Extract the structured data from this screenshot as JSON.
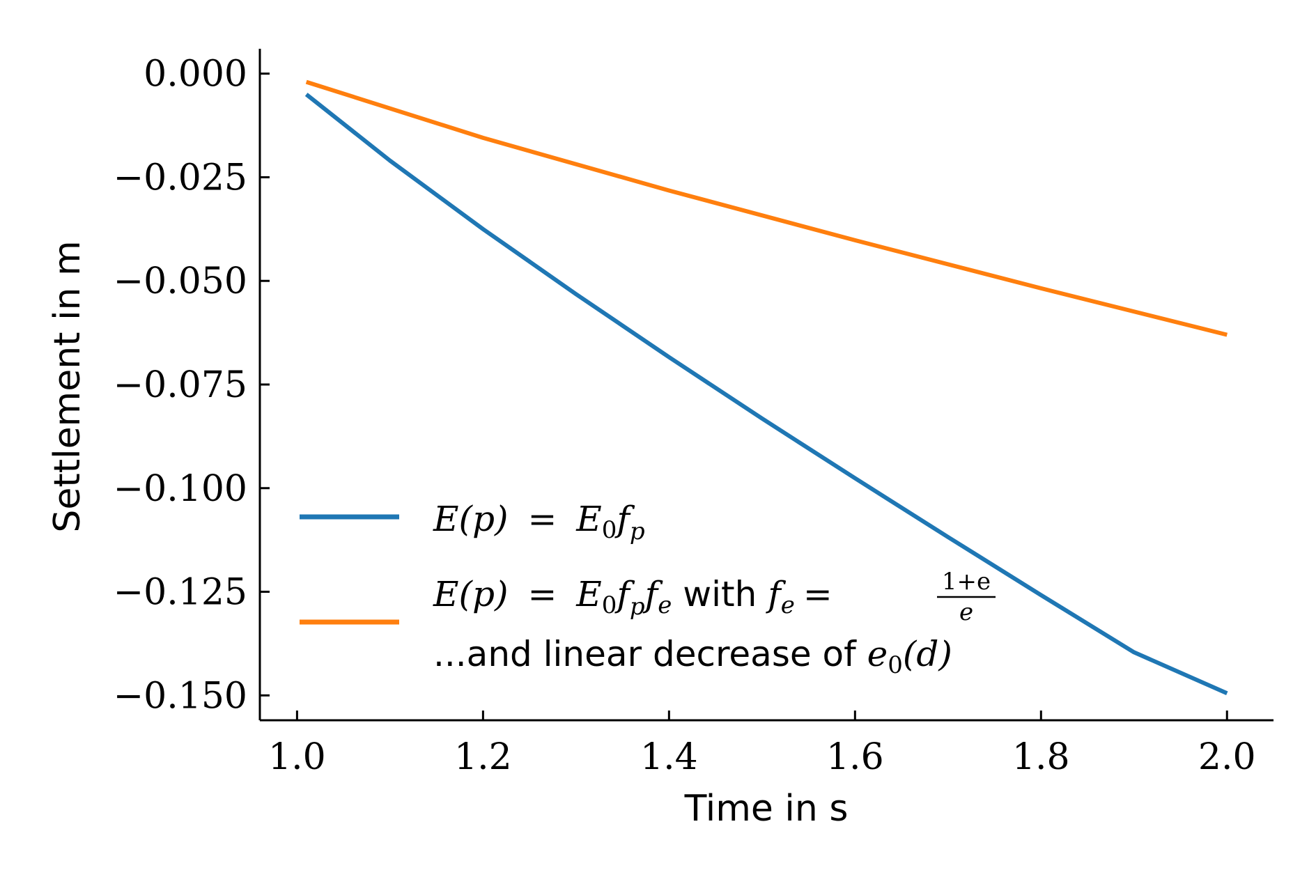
{
  "chart_data": {
    "type": "line",
    "xlabel": "Time in s",
    "ylabel": "Settlement in m",
    "xlim": [
      0.96,
      2.05
    ],
    "ylim": [
      -0.156,
      0.006
    ],
    "xticks": [
      1.0,
      1.2,
      1.4,
      1.6,
      1.8,
      2.0
    ],
    "xtick_labels": [
      "1.0",
      "1.2",
      "1.4",
      "1.6",
      "1.8",
      "2.0"
    ],
    "yticks": [
      0.0,
      -0.025,
      -0.05,
      -0.075,
      -0.1,
      -0.125,
      -0.15
    ],
    "ytick_labels": [
      "0.000",
      "−0.025",
      "−0.050",
      "−0.075",
      "−0.100",
      "−0.125",
      "−0.150"
    ],
    "grid": false,
    "legend_position": "lower-left",
    "series": [
      {
        "name": "E(p) = E0 fp",
        "color": "#1f77b4",
        "x": [
          1.01,
          1.1,
          1.2,
          1.3,
          1.4,
          1.5,
          1.6,
          1.7,
          1.8,
          1.9,
          2.0
        ],
        "y": [
          -0.005,
          -0.021,
          -0.0375,
          -0.0532,
          -0.0684,
          -0.0832,
          -0.0976,
          -0.1118,
          -0.1258,
          -0.1396,
          -0.1495
        ]
      },
      {
        "name": "E(p) = E0 fp fe with fe = (1+e)/e ...and linear decrease of e0(d)",
        "color": "#ff7f0e",
        "x": [
          1.01,
          1.2,
          1.4,
          1.6,
          1.8,
          2.0
        ],
        "y": [
          -0.002,
          -0.0155,
          -0.0282,
          -0.0402,
          -0.0518,
          -0.063
        ]
      }
    ]
  },
  "legend": {
    "entry1": {
      "lhs": "E(p)",
      "eq": "=",
      "E": "E",
      "sub0": "0",
      "f": "f",
      "subp": "p"
    },
    "entry2": {
      "lhs": "E(p)",
      "eq": "=",
      "E": "E",
      "sub0": "0",
      "f1": "f",
      "subp": "p",
      "f2": "f",
      "sube": "e",
      "with": " with ",
      "f3": "f",
      "sube2": "e",
      "eq2": "=",
      "num": "1+e",
      "den": "e",
      "line2_text": "...and linear decrease of ",
      "e0": "e",
      "sub0b": "0",
      "d": "(d)"
    }
  }
}
